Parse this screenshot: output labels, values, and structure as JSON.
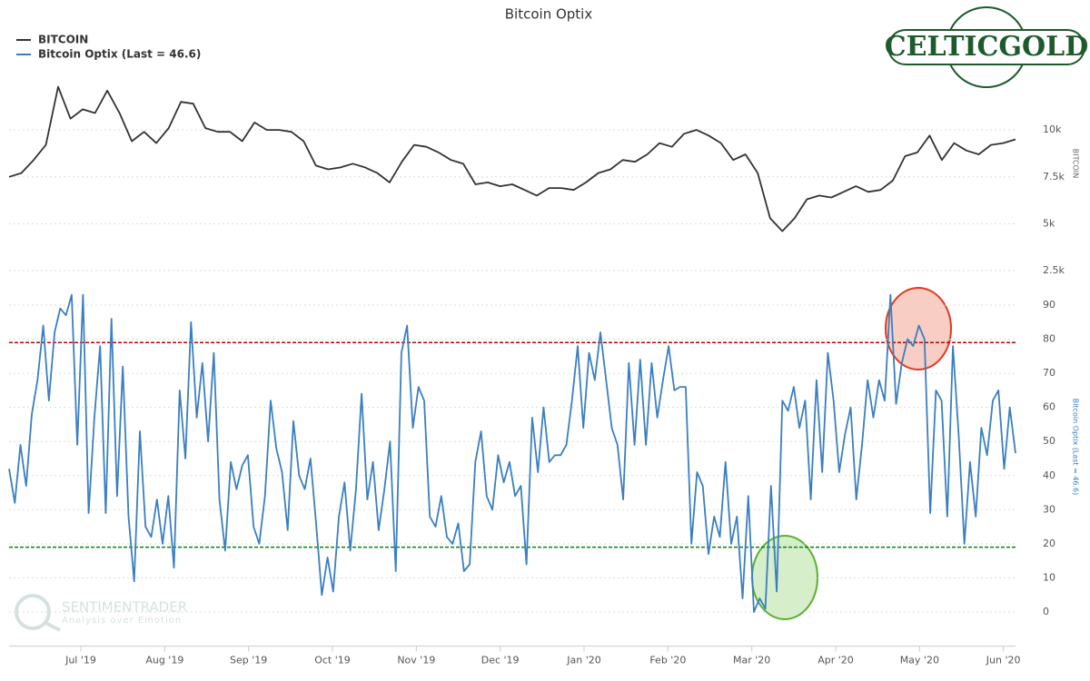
{
  "logo": "CELTICGOLD",
  "watermark": {
    "name": "SENTIMENTRADER",
    "tagline": "Analysis over Emotion"
  },
  "chart_data": [
    {
      "type": "line",
      "title": "Bitcoin Optix",
      "ylabel": "BITCOIN",
      "series": [
        {
          "name": "BITCOIN",
          "color": "#333333",
          "values": [
            7500,
            7700,
            8400,
            9200,
            12300,
            10600,
            11100,
            10900,
            12100,
            10900,
            9400,
            9900,
            9300,
            10100,
            11500,
            11400,
            10100,
            9900,
            9900,
            9400,
            10400,
            10000,
            10000,
            9900,
            9400,
            8100,
            7900,
            8000,
            8200,
            8000,
            7700,
            7200,
            8300,
            9200,
            9100,
            8800,
            8400,
            8200,
            7100,
            7200,
            7000,
            7100,
            6800,
            6500,
            6900,
            6900,
            6800,
            7200,
            7700,
            7900,
            8400,
            8300,
            8700,
            9300,
            9100,
            9800,
            10000,
            9700,
            9300,
            8400,
            8700,
            7700,
            5300,
            4600,
            5300,
            6300,
            6500,
            6400,
            6700,
            7000,
            6700,
            6800,
            7300,
            8600,
            8800,
            9700,
            8400,
            9300,
            8900,
            8700,
            9200,
            9300,
            9500
          ]
        }
      ],
      "ylim": [
        2500,
        12500
      ],
      "yticks": [
        {
          "value": 2500,
          "label": "2.5k"
        },
        {
          "value": 5000,
          "label": "5k"
        },
        {
          "value": 7500,
          "label": "7.5k"
        },
        {
          "value": 10000,
          "label": "10k"
        }
      ],
      "grid": true
    },
    {
      "type": "line",
      "ylabel": "Bitcoin Optix (Last = 46.6)",
      "series": [
        {
          "name": "Bitcoin Optix (Last = 46.6)",
          "color": "#3a7fc1",
          "values": [
            42,
            32,
            49,
            37,
            58,
            68,
            84,
            62,
            82,
            89,
            87,
            93,
            49,
            93,
            29,
            57,
            78,
            29,
            86,
            34,
            72,
            28,
            9,
            53,
            25,
            22,
            33,
            20,
            34,
            13,
            65,
            45,
            85,
            57,
            73,
            50,
            76,
            33,
            18,
            44,
            36,
            43,
            46,
            25,
            20,
            34,
            62,
            48,
            41,
            24,
            56,
            40,
            36,
            45,
            26,
            5,
            16,
            6,
            28,
            38,
            18,
            36,
            64,
            33,
            44,
            24,
            36,
            50,
            12,
            76,
            84,
            54,
            66,
            62,
            28,
            25,
            34,
            22,
            20,
            26,
            12,
            14,
            44,
            53,
            34,
            30,
            46,
            38,
            44,
            34,
            37,
            14,
            57,
            41,
            60,
            44,
            46,
            46,
            49,
            62,
            78,
            54,
            76,
            68,
            82,
            68,
            54,
            49,
            33,
            73,
            49,
            74,
            49,
            73,
            57,
            68,
            78,
            65,
            66,
            66,
            20,
            41,
            37,
            17,
            28,
            22,
            44,
            20,
            28,
            4,
            34,
            0,
            4,
            1,
            37,
            6,
            62,
            59,
            66,
            54,
            62,
            33,
            68,
            41,
            76,
            62,
            41,
            52,
            60,
            33,
            49,
            68,
            57,
            68,
            62,
            93,
            61,
            73,
            80,
            78,
            84,
            80,
            29,
            65,
            62,
            28,
            78,
            52,
            20,
            44,
            28,
            54,
            46,
            62,
            65,
            42,
            60,
            46.6
          ]
        }
      ],
      "ylim": [
        -10,
        95
      ],
      "yticks": [
        0,
        10,
        20,
        30,
        40,
        50,
        60,
        70,
        80,
        90
      ],
      "grid": true,
      "reference_lines": [
        {
          "value": 79,
          "color": "#c00000"
        },
        {
          "value": 19,
          "color": "#008800"
        }
      ],
      "x_labels": [
        "Jul '19",
        "Aug '19",
        "Sep '19",
        "Oct '19",
        "Nov '19",
        "Dec '19",
        "Jan '20",
        "Feb '20",
        "Mar '20",
        "Apr '20",
        "May '20",
        "Jun '20"
      ]
    }
  ]
}
